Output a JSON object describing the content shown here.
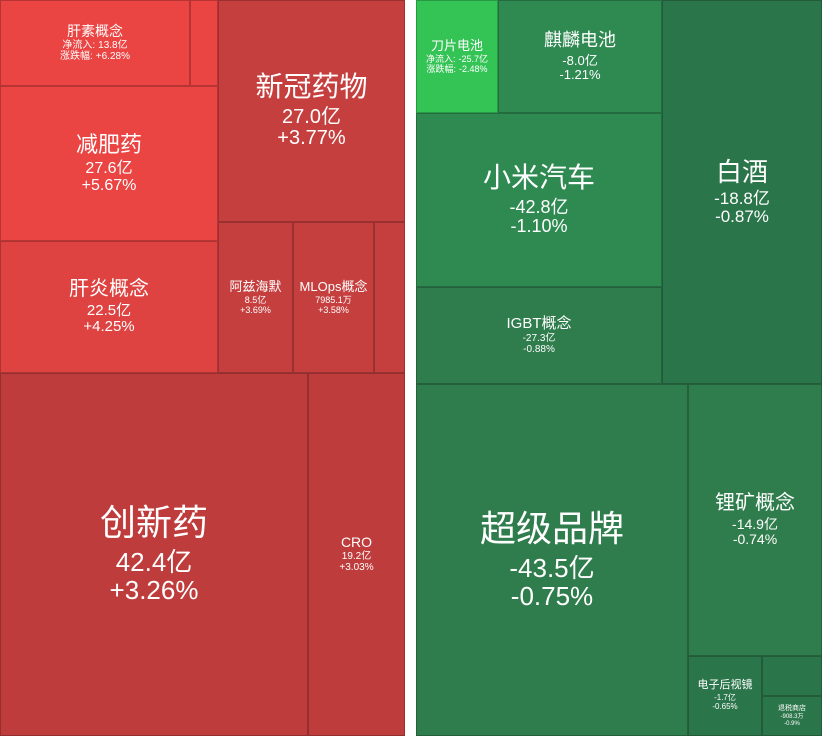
{
  "colors": {
    "red_strong": "#ea4443",
    "red_mid": "#de4341",
    "red_weak": "#c63f3f",
    "red_weakest": "#bf3c3c",
    "green_strong": "#34c455",
    "green_mid": "#2f8a52",
    "green_weak": "#2f7c4c",
    "green_weakest": "#2b754a"
  },
  "chart_data": [
    {
      "type": "treemap",
      "panel": "inflow",
      "tiles": [
        {
          "name": "创新药",
          "net_inflow": "42.4亿",
          "change": "+3.26%"
        },
        {
          "name": "减肥药",
          "net_inflow": "27.6亿",
          "change": "+5.67%"
        },
        {
          "name": "新冠药物",
          "net_inflow": "27.0亿",
          "change": "+3.77%"
        },
        {
          "name": "肝炎概念",
          "net_inflow": "22.5亿",
          "change": "+4.25%"
        },
        {
          "name": "CRO",
          "net_inflow": "19.2亿",
          "change": "+3.03%"
        },
        {
          "name": "肝素概念",
          "net_inflow": "13.8亿",
          "change": "+6.28%",
          "net_inflow_label": "净流入:",
          "change_label": "涨跌幅:"
        },
        {
          "name": "阿兹海默",
          "net_inflow": "8.5亿",
          "change": "+3.69%"
        },
        {
          "name": "MLOps概念",
          "net_inflow": "7985.1万",
          "change": "+3.58%"
        }
      ]
    },
    {
      "type": "treemap",
      "panel": "outflow",
      "tiles": [
        {
          "name": "超级品牌",
          "net_inflow": "-43.5亿",
          "change": "-0.75%"
        },
        {
          "name": "小米汽车",
          "net_inflow": "-42.8亿",
          "change": "-1.10%"
        },
        {
          "name": "IGBT概念",
          "net_inflow": "-27.3亿",
          "change": "-0.88%"
        },
        {
          "name": "刀片电池",
          "net_inflow": "-25.7亿",
          "change": "-2.48%",
          "net_inflow_label": "净流入:",
          "change_label": "涨跌幅:"
        },
        {
          "name": "白酒",
          "net_inflow": "-18.8亿",
          "change": "-0.87%"
        },
        {
          "name": "锂矿概念",
          "net_inflow": "-14.9亿",
          "change": "-0.74%"
        },
        {
          "name": "麒麟电池",
          "net_inflow": "-8.0亿",
          "change": "-1.21%"
        },
        {
          "name": "电子后视镜",
          "net_inflow": "-1.7亿",
          "change": "-0.65%"
        },
        {
          "name": "退税商店",
          "net_inflow": "-908.3万",
          "change": "-0.9%"
        }
      ]
    }
  ]
}
